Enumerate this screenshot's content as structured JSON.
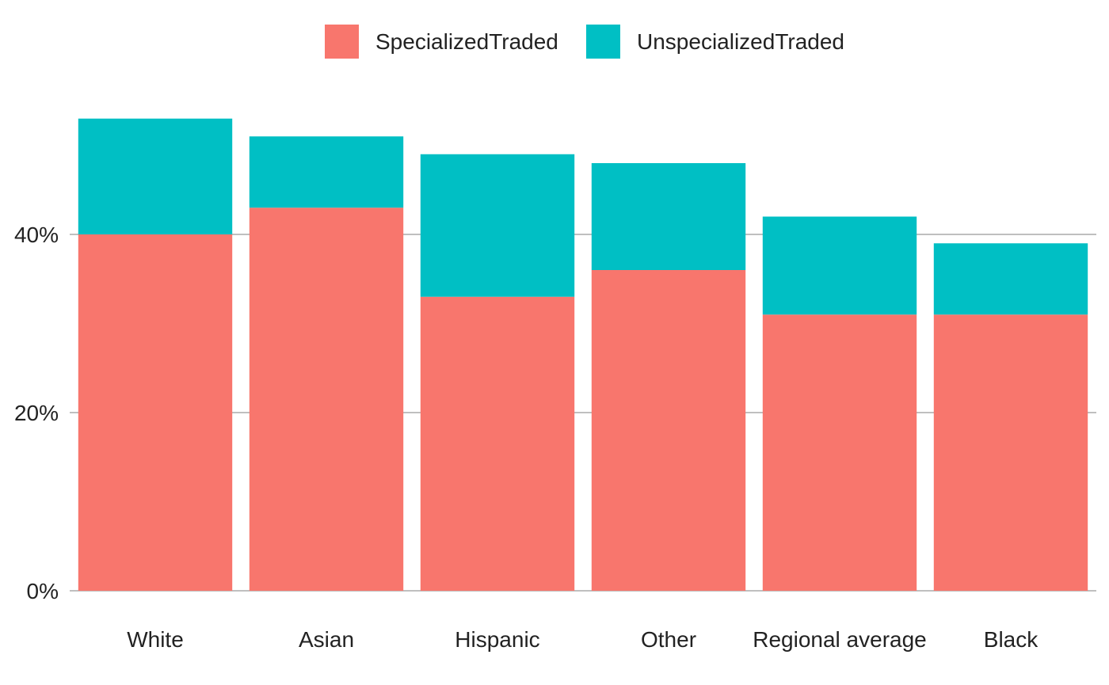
{
  "chart_data": {
    "type": "bar",
    "stacked": true,
    "categories": [
      "White",
      "Asian",
      "Hispanic",
      "Other",
      "Regional average",
      "Black"
    ],
    "series": [
      {
        "name": "SpecializedTraded",
        "color": "#F8766D",
        "values": [
          40,
          43,
          33,
          36,
          31,
          31
        ]
      },
      {
        "name": "UnspecializedTraded",
        "color": "#00BFC4",
        "values": [
          13,
          8,
          16,
          12,
          11,
          8
        ]
      }
    ],
    "y_ticks": [
      {
        "value": 0,
        "label": "0%"
      },
      {
        "value": 20,
        "label": "20%"
      },
      {
        "value": 40,
        "label": "40%"
      }
    ],
    "ylim": [
      0,
      53
    ],
    "xlabel": "",
    "ylabel": "",
    "title": "",
    "grid": "horizontal",
    "legend_position": "top"
  }
}
